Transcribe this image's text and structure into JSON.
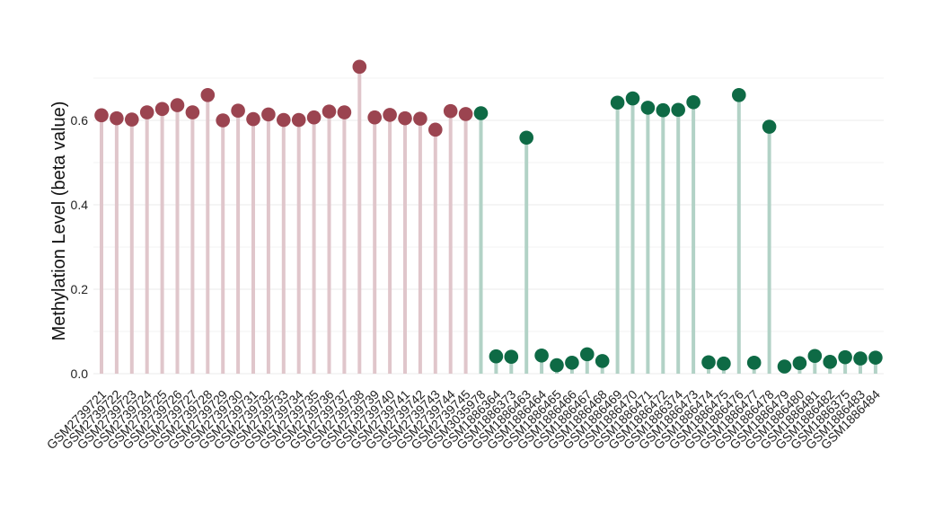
{
  "chart_data": {
    "type": "lollipop",
    "title": "",
    "xlabel": "",
    "ylabel": "Methylation Level (beta value)",
    "ylim": [
      0,
      0.72
    ],
    "yticks": [
      "0.0",
      "0.2",
      "0.4",
      "0.6"
    ],
    "grid": true,
    "legend": "none",
    "series": [
      {
        "color": "#9b4450",
        "stem_color": "#e0c6cb",
        "categories": [
          "GSM2739721",
          "GSM2739722",
          "GSM2739723",
          "GSM2739724",
          "GSM2739725",
          "GSM2739726",
          "GSM2739727",
          "GSM2739728",
          "GSM2739729",
          "GSM2739730",
          "GSM2739731",
          "GSM2739732",
          "GSM2739733",
          "GSM2739734",
          "GSM2739735",
          "GSM2739736",
          "GSM2739737",
          "GSM2739738",
          "GSM2739739",
          "GSM2739740",
          "GSM2739741",
          "GSM2739742",
          "GSM2739743",
          "GSM2739744",
          "GSM2739745"
        ],
        "values": [
          0.612,
          0.605,
          0.602,
          0.619,
          0.627,
          0.636,
          0.619,
          0.66,
          0.6,
          0.623,
          0.603,
          0.614,
          0.601,
          0.601,
          0.607,
          0.621,
          0.619,
          0.727,
          0.607,
          0.613,
          0.605,
          0.604,
          0.578,
          0.622,
          0.615
        ]
      },
      {
        "color": "#0e6a45",
        "stem_color": "#b2d2c6",
        "categories": [
          "GSM3035978",
          "GSM1886364",
          "GSM1886373",
          "GSM1886463",
          "GSM1886464",
          "GSM1886465",
          "GSM1886466",
          "GSM1886467",
          "GSM1886468",
          "GSM1886469",
          "GSM1886470",
          "GSM1886471",
          "GSM1886472",
          "GSM1886374",
          "GSM1886473",
          "GSM1886474",
          "GSM1886475",
          "GSM1886476",
          "GSM1886477",
          "GSM1886478",
          "GSM1886479",
          "GSM1886480",
          "GSM1886481",
          "GSM1886482",
          "GSM1886375",
          "GSM1886483",
          "GSM1886484"
        ],
        "values": [
          0.617,
          0.041,
          0.04,
          0.559,
          0.043,
          0.02,
          0.026,
          0.046,
          0.03,
          0.642,
          0.652,
          0.63,
          0.624,
          0.625,
          0.643,
          0.027,
          0.024,
          0.66,
          0.026,
          0.585,
          0.017,
          0.025,
          0.042,
          0.028,
          0.039,
          0.036,
          0.038
        ]
      }
    ]
  }
}
